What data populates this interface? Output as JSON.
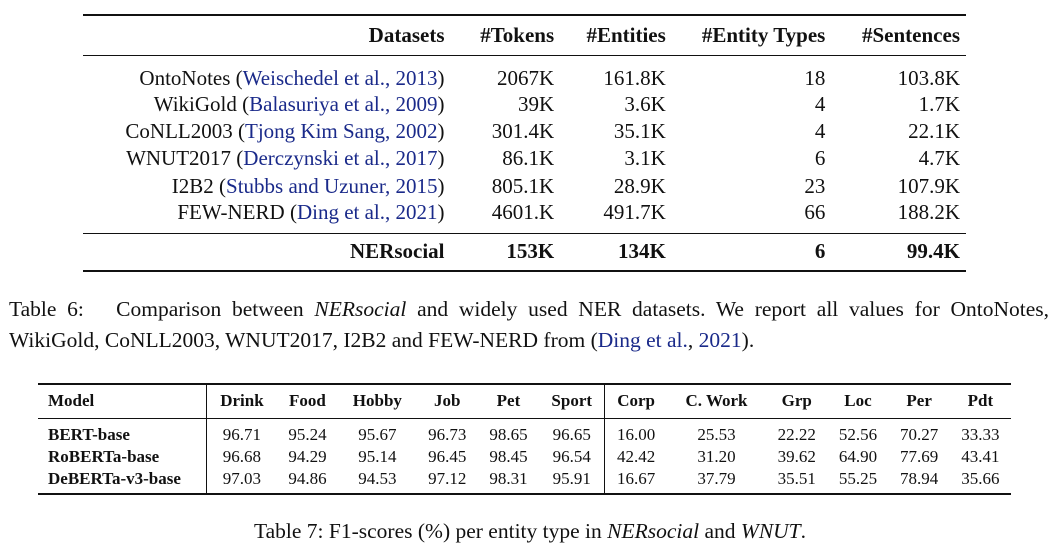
{
  "table6": {
    "headers": [
      "Datasets",
      "#Tokens",
      "#Entities",
      "#Entity Types",
      "#Sentences"
    ],
    "rows": [
      {
        "name": "OntoNotes",
        "cite": "Weischedel et al., 2013",
        "tokens": "2067K",
        "entities": "161.8K",
        "types": "18",
        "sentences": "103.8K"
      },
      {
        "name": "WikiGold",
        "cite": "Balasuriya et al., 2009",
        "tokens": "39K",
        "entities": "3.6K",
        "types": "4",
        "sentences": "1.7K"
      },
      {
        "name": "CoNLL2003",
        "cite": "Tjong Kim Sang, 2002",
        "tokens": "301.4K",
        "entities": "35.1K",
        "types": "4",
        "sentences": "22.1K"
      },
      {
        "name": "WNUT2017",
        "cite": "Derczynski et al., 2017",
        "tokens": "86.1K",
        "entities": "3.1K",
        "types": "6",
        "sentences": "4.7K"
      },
      {
        "name": "I2B2",
        "cite": "Stubbs and Uzuner, 2015",
        "tokens": "805.1K",
        "entities": "28.9K",
        "types": "23",
        "sentences": "107.9K"
      },
      {
        "name": "FEW-NERD",
        "cite": "Ding et al., 2021",
        "tokens": "4601.K",
        "entities": "491.7K",
        "types": "66",
        "sentences": "188.2K"
      }
    ],
    "total": {
      "name": "NERsocial",
      "tokens": "153K",
      "entities": "134K",
      "types": "6",
      "sentences": "99.4K"
    }
  },
  "caption6": {
    "label": "Table 6:",
    "part1": "Comparison between",
    "italic": "NERsocial",
    "part2": "and widely used NER datasets. We report all values for OntoNotes, WikiGold, CoNLL2003, WNUT2017, I2B2 and FEW-NERD from (",
    "cite_author": "Ding et al.",
    "cite_sep": ",",
    "cite_year": "2021",
    "end": ")."
  },
  "table7": {
    "headers": [
      "Model",
      "Drink",
      "Food",
      "Hobby",
      "Job",
      "Pet",
      "Sport",
      "Corp",
      "C. Work",
      "Grp",
      "Loc",
      "Per",
      "Pdt"
    ],
    "rows": [
      {
        "model": "BERT-base",
        "values": [
          "96.71",
          "95.24",
          "95.67",
          "96.73",
          "98.65",
          "96.65",
          "16.00",
          "25.53",
          "22.22",
          "52.56",
          "70.27",
          "33.33"
        ]
      },
      {
        "model": "RoBERTa-base",
        "values": [
          "96.68",
          "94.29",
          "95.14",
          "96.45",
          "98.45",
          "96.54",
          "42.42",
          "31.20",
          "39.62",
          "64.90",
          "77.69",
          "43.41"
        ]
      },
      {
        "model": "DeBERTa-v3-base",
        "values": [
          "97.03",
          "94.86",
          "94.53",
          "97.12",
          "98.31",
          "95.91",
          "16.67",
          "37.79",
          "35.51",
          "55.25",
          "78.94",
          "35.66"
        ]
      }
    ]
  },
  "caption7": {
    "part1": "Table 7: F1-scores (%) per entity type in",
    "italic1": "NERsocial",
    "part2": "and",
    "italic2": "WNUT",
    "end": "."
  }
}
